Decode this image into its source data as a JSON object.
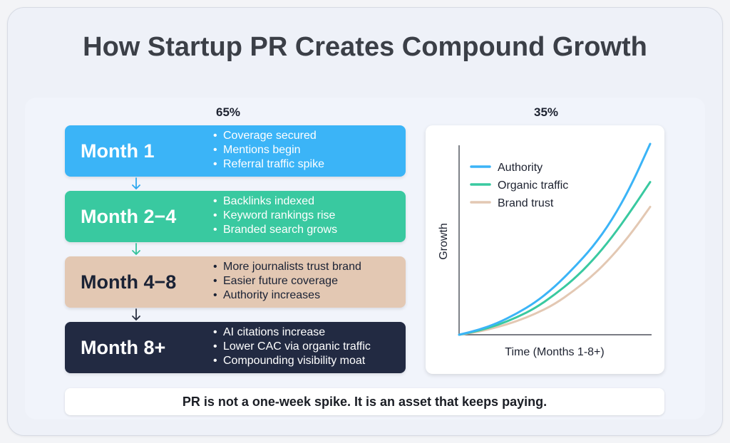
{
  "title": "How Startup PR Creates Compound Growth",
  "left_percent": "65%",
  "right_percent": "35%",
  "stages": [
    {
      "label": "Month 1",
      "bg": "#3bb4f7",
      "text_color": "#ffffff",
      "arrow_color": "#2ea8ef",
      "items": [
        "Coverage secured",
        "Mentions begin",
        "Referral traffic spike"
      ]
    },
    {
      "label": "Month 2−4",
      "bg": "#39c9a0",
      "text_color": "#ffffff",
      "arrow_color": "#35c29a",
      "items": [
        "Backlinks indexed",
        "Keyword rankings rise",
        "Branded search grows"
      ]
    },
    {
      "label": "Month 4−8",
      "bg": "#e3c8b3",
      "text_color": "#1a2235",
      "arrow_color": "#2a3142",
      "items": [
        "More journalists trust brand",
        "Easier future coverage",
        "Authority increases"
      ]
    },
    {
      "label": "Month 8+",
      "bg": "#222a42",
      "text_color": "#ffffff",
      "arrow_color": null,
      "items": [
        "AI citations increase",
        "Lower CAC via organic traffic",
        "Compounding visibility moat"
      ]
    }
  ],
  "chart_data": {
    "type": "line",
    "xlabel": "Time (Months 1-8+)",
    "ylabel": "Growth",
    "xlim": [
      0,
      1
    ],
    "ylim": [
      0,
      1
    ],
    "x": [
      0,
      0.1,
      0.2,
      0.3,
      0.4,
      0.5,
      0.6,
      0.7,
      0.8,
      0.9,
      1.0
    ],
    "series": [
      {
        "name": "Authority",
        "color": "#3bb4f7",
        "values": [
          0,
          0.025,
          0.06,
          0.11,
          0.17,
          0.25,
          0.35,
          0.46,
          0.6,
          0.78,
          1.0
        ]
      },
      {
        "name": "Organic traffic",
        "color": "#39c9a0",
        "values": [
          0,
          0.02,
          0.05,
          0.09,
          0.14,
          0.21,
          0.29,
          0.39,
          0.51,
          0.65,
          0.8
        ]
      },
      {
        "name": "Brand trust",
        "color": "#e3c8b3",
        "values": [
          0,
          0.015,
          0.04,
          0.07,
          0.11,
          0.16,
          0.23,
          0.31,
          0.41,
          0.53,
          0.67
        ]
      }
    ],
    "legend_position": "top-left",
    "grid": false
  },
  "footer_text": "PR is not a one-week spike. It is an asset that keeps paying."
}
